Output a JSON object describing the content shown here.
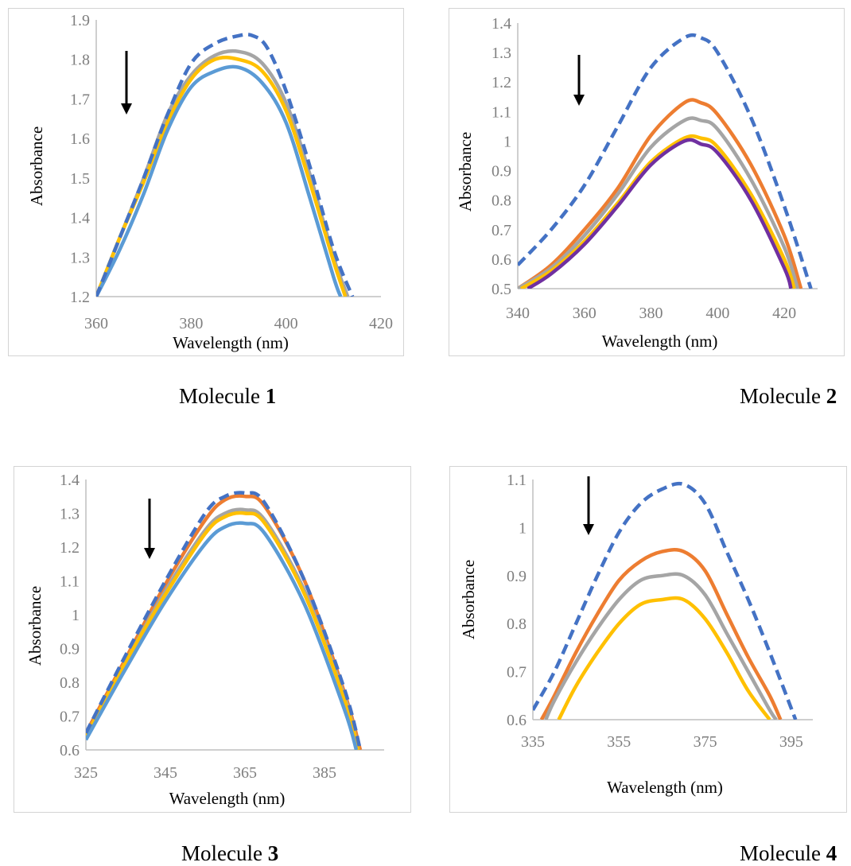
{
  "chart_data": [
    {
      "type": "line",
      "caption": {
        "prefix": "Molecule ",
        "number": "1"
      },
      "xlabel": "Wavelength (nm)",
      "ylabel": "Absorbance",
      "xlim": [
        360,
        420
      ],
      "ylim": [
        1.2,
        1.9
      ],
      "xticks": [
        "360",
        "380",
        "400",
        "420"
      ],
      "yticks": [
        "1.2",
        "1.3",
        "1.4",
        "1.5",
        "1.6",
        "1.7",
        "1.8",
        "1.9"
      ],
      "arrow": "down",
      "series": [
        {
          "color": "#4472c4",
          "dash": true,
          "x": [
            360,
            365,
            370,
            375,
            380,
            385,
            390,
            393,
            396,
            400,
            405,
            410,
            414
          ],
          "y": [
            1.2,
            1.35,
            1.5,
            1.66,
            1.79,
            1.84,
            1.86,
            1.86,
            1.83,
            1.72,
            1.53,
            1.32,
            1.2
          ]
        },
        {
          "color": "#a5a5a5",
          "dash": false,
          "x": [
            360,
            365,
            370,
            375,
            380,
            385,
            390,
            395,
            400,
            405,
            410,
            413
          ],
          "y": [
            1.2,
            1.35,
            1.5,
            1.66,
            1.76,
            1.81,
            1.82,
            1.79,
            1.69,
            1.51,
            1.3,
            1.2
          ]
        },
        {
          "color": "#ffc000",
          "dash": false,
          "x": [
            360,
            365,
            370,
            375,
            380,
            385,
            390,
            395,
            400,
            405,
            410,
            412.5
          ],
          "y": [
            1.2,
            1.35,
            1.49,
            1.64,
            1.75,
            1.8,
            1.8,
            1.77,
            1.67,
            1.49,
            1.29,
            1.2
          ]
        },
        {
          "color": "#5b9bd5",
          "dash": false,
          "x": [
            360,
            365,
            370,
            375,
            380,
            385,
            390,
            395,
            400,
            405,
            410,
            411.5
          ],
          "y": [
            1.2,
            1.32,
            1.46,
            1.62,
            1.73,
            1.77,
            1.78,
            1.74,
            1.64,
            1.45,
            1.25,
            1.2
          ]
        }
      ]
    },
    {
      "type": "line",
      "caption": {
        "prefix": "Molecule ",
        "number": "2"
      },
      "xlabel": "Wavelength (nm)",
      "ylabel": "Absorbance",
      "xlim": [
        340,
        430
      ],
      "ylim": [
        0.5,
        1.4
      ],
      "xticks": [
        "340",
        "360",
        "380",
        "400",
        "420"
      ],
      "yticks": [
        "0.5",
        "0.6",
        "0.7",
        "0.8",
        "0.9",
        "1",
        "1.1",
        "1.2",
        "1.3",
        "1.4"
      ],
      "arrow": "down",
      "series": [
        {
          "color": "#4472c4",
          "dash": true,
          "x": [
            340,
            350,
            360,
            370,
            380,
            390,
            395,
            400,
            410,
            420,
            428
          ],
          "y": [
            0.58,
            0.7,
            0.85,
            1.05,
            1.25,
            1.35,
            1.35,
            1.3,
            1.08,
            0.78,
            0.5
          ]
        },
        {
          "color": "#ed7d31",
          "dash": false,
          "x": [
            340,
            350,
            360,
            370,
            380,
            390,
            395,
            400,
            410,
            420,
            425
          ],
          "y": [
            0.5,
            0.58,
            0.7,
            0.84,
            1.02,
            1.13,
            1.13,
            1.09,
            0.92,
            0.68,
            0.5
          ]
        },
        {
          "color": "#a5a5a5",
          "dash": false,
          "x": [
            340,
            350,
            360,
            370,
            380,
            390,
            395,
            400,
            410,
            420,
            424
          ],
          "y": [
            0.5,
            0.57,
            0.68,
            0.82,
            0.98,
            1.07,
            1.07,
            1.04,
            0.87,
            0.64,
            0.5
          ]
        },
        {
          "color": "#ffc000",
          "dash": false,
          "x": [
            341,
            350,
            360,
            370,
            380,
            390,
            395,
            400,
            410,
            420,
            423
          ],
          "y": [
            0.5,
            0.56,
            0.66,
            0.79,
            0.93,
            1.01,
            1.01,
            0.98,
            0.82,
            0.6,
            0.5
          ]
        },
        {
          "color": "#7030a0",
          "dash": false,
          "x": [
            343,
            350,
            360,
            370,
            380,
            390,
            395,
            400,
            410,
            420,
            422
          ],
          "y": [
            0.5,
            0.55,
            0.65,
            0.78,
            0.92,
            1.0,
            0.99,
            0.96,
            0.8,
            0.57,
            0.5
          ]
        }
      ]
    },
    {
      "type": "line",
      "caption": {
        "prefix": "Molecule ",
        "number": "3"
      },
      "xlabel": "Wavelength (nm)",
      "ylabel": "Absorbance",
      "xlim": [
        325,
        400
      ],
      "ylim": [
        0.6,
        1.4
      ],
      "xticks": [
        "325",
        "345",
        "365",
        "385"
      ],
      "yticks": [
        "0.6",
        "0.7",
        "0.8",
        "0.9",
        "1",
        "1.1",
        "1.2",
        "1.3",
        "1.4"
      ],
      "arrow": "down",
      "series": [
        {
          "color": "#4472c4",
          "dash": true,
          "x": [
            325,
            335,
            345,
            355,
            360,
            365,
            370,
            380,
            390,
            394
          ],
          "y": [
            0.65,
            0.88,
            1.1,
            1.3,
            1.35,
            1.36,
            1.33,
            1.1,
            0.78,
            0.6
          ]
        },
        {
          "color": "#ed7d31",
          "dash": false,
          "x": [
            325,
            335,
            345,
            355,
            360,
            365,
            370,
            380,
            390,
            394
          ],
          "y": [
            0.65,
            0.87,
            1.09,
            1.28,
            1.34,
            1.35,
            1.32,
            1.1,
            0.77,
            0.6
          ]
        },
        {
          "color": "#a5a5a5",
          "dash": false,
          "x": [
            325,
            335,
            345,
            355,
            360,
            365,
            370,
            380,
            390,
            393.5
          ],
          "y": [
            0.64,
            0.86,
            1.07,
            1.25,
            1.3,
            1.31,
            1.28,
            1.07,
            0.76,
            0.6
          ]
        },
        {
          "color": "#ffc000",
          "dash": false,
          "x": [
            325,
            335,
            345,
            355,
            360,
            365,
            370,
            380,
            390,
            393.5
          ],
          "y": [
            0.64,
            0.86,
            1.06,
            1.24,
            1.29,
            1.3,
            1.27,
            1.06,
            0.75,
            0.6
          ]
        },
        {
          "color": "#5b9bd5",
          "dash": false,
          "x": [
            325,
            335,
            345,
            355,
            360,
            365,
            370,
            380,
            390,
            393
          ],
          "y": [
            0.63,
            0.84,
            1.04,
            1.21,
            1.26,
            1.27,
            1.24,
            1.03,
            0.72,
            0.6
          ]
        }
      ]
    },
    {
      "type": "line",
      "caption": {
        "prefix": "Molecule ",
        "number": "4"
      },
      "xlabel": "Wavelength (nm)",
      "ylabel": "Absorbance",
      "xlim": [
        335,
        400
      ],
      "ylim": [
        0.6,
        1.1
      ],
      "xticks": [
        "335",
        "355",
        "375",
        "395"
      ],
      "yticks": [
        "0.6",
        "0.7",
        "0.8",
        "0.9",
        "1",
        "1.1"
      ],
      "arrow": "down",
      "series": [
        {
          "color": "#4472c4",
          "dash": true,
          "x": [
            335,
            340,
            345,
            350,
            355,
            360,
            365,
            370,
            375,
            380,
            385,
            390,
            396
          ],
          "y": [
            0.62,
            0.7,
            0.8,
            0.9,
            0.99,
            1.05,
            1.08,
            1.09,
            1.05,
            0.95,
            0.85,
            0.74,
            0.6
          ]
        },
        {
          "color": "#ed7d31",
          "dash": false,
          "x": [
            337,
            340,
            345,
            350,
            355,
            360,
            365,
            370,
            375,
            380,
            385,
            390,
            392.5
          ],
          "y": [
            0.6,
            0.65,
            0.74,
            0.82,
            0.89,
            0.93,
            0.95,
            0.95,
            0.91,
            0.82,
            0.73,
            0.65,
            0.6
          ]
        },
        {
          "color": "#a5a5a5",
          "dash": false,
          "x": [
            338,
            340,
            345,
            350,
            355,
            360,
            365,
            370,
            375,
            380,
            385,
            390,
            391.5
          ],
          "y": [
            0.6,
            0.64,
            0.72,
            0.79,
            0.85,
            0.89,
            0.9,
            0.9,
            0.86,
            0.78,
            0.7,
            0.62,
            0.6
          ]
        },
        {
          "color": "#ffc000",
          "dash": false,
          "x": [
            341,
            345,
            350,
            355,
            360,
            365,
            370,
            375,
            380,
            385,
            390
          ],
          "y": [
            0.6,
            0.67,
            0.74,
            0.8,
            0.84,
            0.85,
            0.85,
            0.81,
            0.74,
            0.66,
            0.6
          ]
        }
      ]
    }
  ]
}
